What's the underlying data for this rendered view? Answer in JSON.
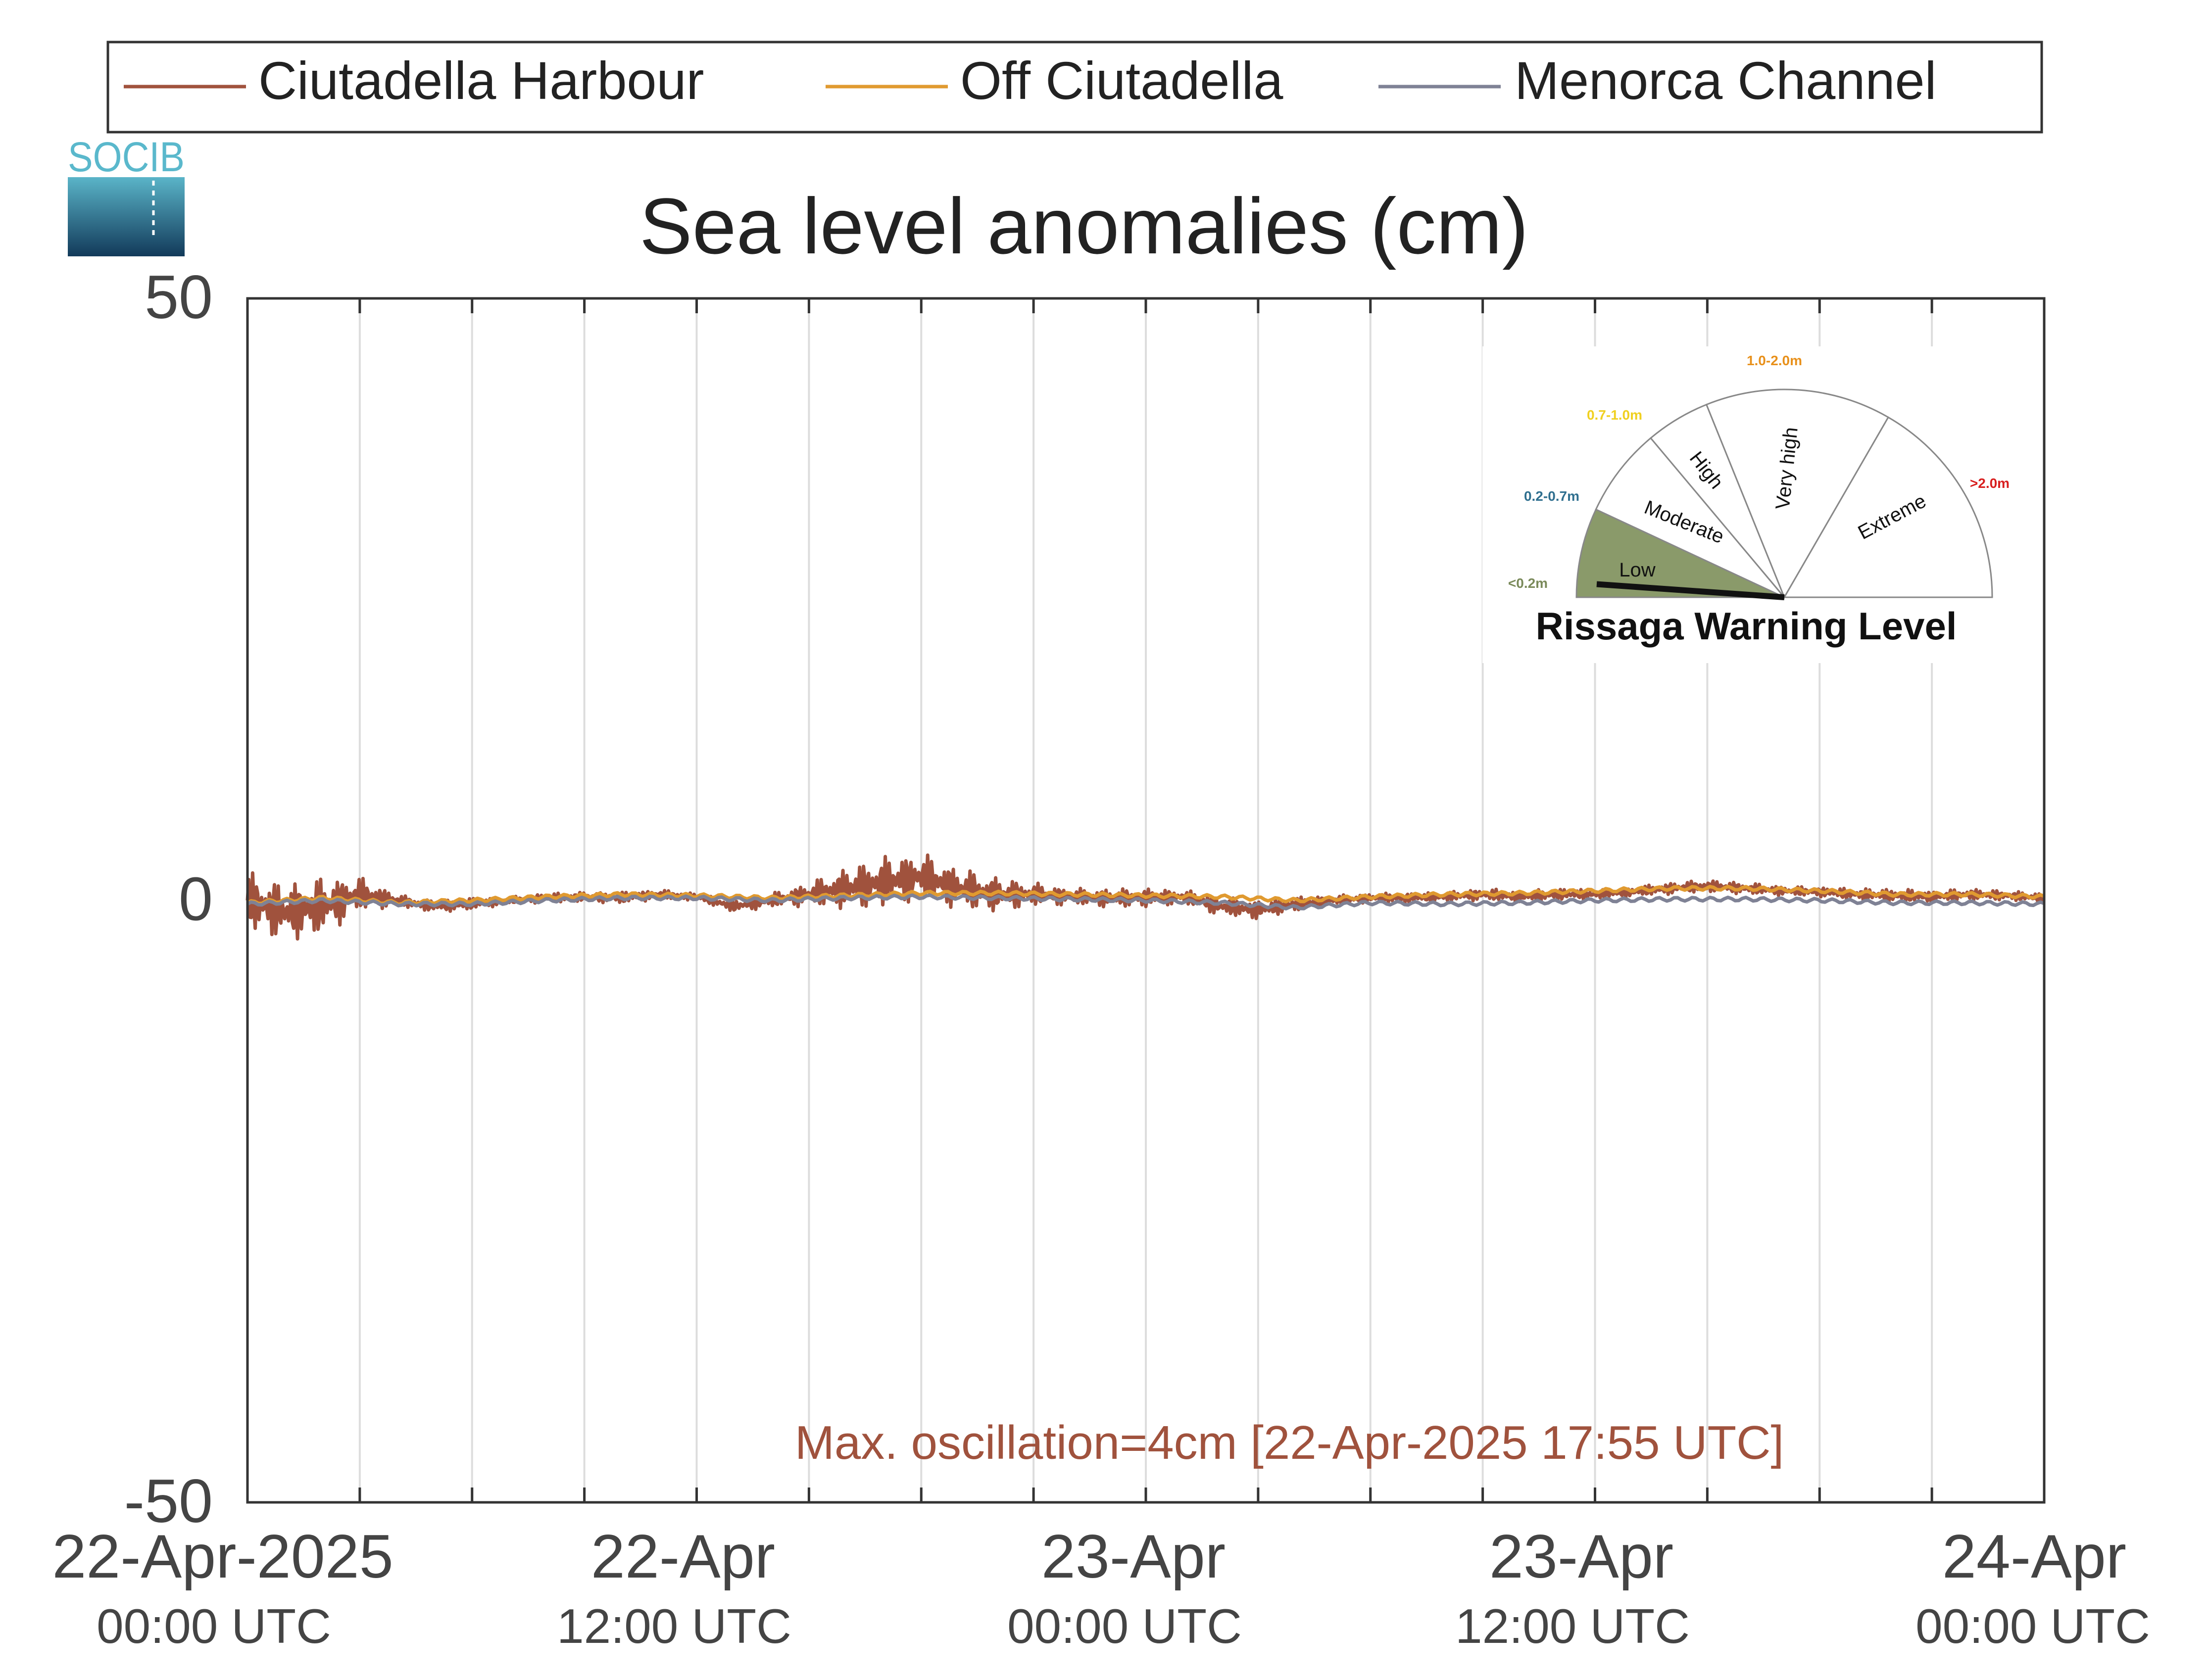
{
  "chart_data": {
    "type": "line",
    "title": "Sea level anomalies (cm)",
    "xlabel": "",
    "ylabel": "",
    "ylim": [
      -50,
      50
    ],
    "xlim": [
      "2025-04-22 00:00",
      "2025-04-24 00:00"
    ],
    "yticks": [
      "50",
      "0",
      "-50"
    ],
    "xticks": [
      {
        "line1": "22-Apr-2025",
        "line2": "00:00 UTC"
      },
      {
        "line1": "22-Apr",
        "line2": "12:00 UTC"
      },
      {
        "line1": "23-Apr",
        "line2": "00:00 UTC"
      },
      {
        "line1": "23-Apr",
        "line2": "12:00 UTC"
      },
      {
        "line1": "24-Apr",
        "line2": "00:00 UTC"
      }
    ],
    "grid": "vertical lines every 3 hours",
    "legend_position": "top",
    "series": [
      {
        "name": "Ciutadella Harbour",
        "color": "#a0523d",
        "x_hours": [
          0,
          1,
          2,
          3,
          4,
          5,
          6,
          7,
          8,
          9,
          10,
          11,
          12,
          13,
          14,
          15,
          16,
          17,
          18,
          19,
          20,
          21,
          22,
          23,
          24,
          25,
          26,
          27,
          28,
          29,
          30,
          31,
          32,
          33,
          34,
          35,
          36,
          37,
          38,
          39,
          40,
          41,
          42,
          43,
          44,
          45,
          46,
          47,
          48
        ],
        "y": [
          0,
          -1,
          -0.5,
          0.5,
          0,
          -0.5,
          -0.3,
          0,
          0.2,
          0.3,
          0.2,
          0.5,
          0.3,
          -0.5,
          0,
          0.5,
          1,
          1.5,
          2,
          1,
          0.5,
          0.5,
          0.3,
          0.2,
          0.2,
          0.3,
          -0.5,
          -0.8,
          -0.3,
          0,
          0.2,
          0.2,
          0.3,
          0.5,
          0.3,
          0.5,
          0.5,
          0.7,
          1,
          1.2,
          1,
          0.8,
          0.7,
          0.5,
          0.4,
          0.3,
          0.5,
          0.4,
          0.2
        ],
        "oscillation_amplitude": [
          2.5,
          2.5,
          2.5,
          1.5,
          0.5,
          0.5,
          0.5,
          0.3,
          0.4,
          0.4,
          0.5,
          0.4,
          0.3,
          0.5,
          0.6,
          1,
          1.8,
          2.2,
          2,
          1.8,
          1.5,
          1,
          0.7,
          0.8,
          0.8,
          0.6,
          0.8,
          0.8,
          0.6,
          0.4,
          0.4,
          0.4,
          0.4,
          0.5,
          0.5,
          0.5,
          0.4,
          0.4,
          0.5,
          0.5,
          0.5,
          0.4,
          0.4,
          0.5,
          0.6,
          0.5,
          0.5,
          0.4,
          0.4
        ]
      },
      {
        "name": "Off Ciutadella",
        "color": "#e09a30",
        "x_hours": [
          0,
          2,
          4,
          6,
          8,
          10,
          12,
          14,
          16,
          18,
          20,
          22,
          24,
          26,
          28,
          30,
          32,
          34,
          36,
          38,
          40,
          42,
          44,
          46,
          48
        ],
        "y": [
          -0.2,
          0.2,
          -0.2,
          0,
          0.3,
          0.5,
          0.4,
          0.2,
          0.4,
          0.6,
          0.6,
          0.5,
          0.4,
          0.3,
          0,
          0.3,
          0.5,
          0.6,
          0.8,
          1,
          1,
          0.8,
          0.5,
          0.5,
          0.3
        ]
      },
      {
        "name": "Menorca Channel",
        "color": "#7f8295",
        "x_hours": [
          0,
          2,
          4,
          6,
          8,
          10,
          12,
          14,
          16,
          18,
          20,
          22,
          24,
          26,
          28,
          30,
          32,
          34,
          36,
          38,
          40,
          42,
          44,
          46,
          48
        ],
        "y": [
          -0.3,
          0,
          -0.3,
          -0.3,
          0,
          0.2,
          0.2,
          0,
          0.2,
          0.3,
          0.2,
          0.1,
          0,
          -0.2,
          -0.6,
          -0.2,
          -0.3,
          -0.2,
          0,
          0.1,
          0.1,
          0,
          -0.2,
          -0.2,
          -0.3
        ]
      }
    ],
    "annotation": "Max. oscillation=4cm [22-Apr-2025 17:55 UTC]",
    "annotation_color": "#a0523d"
  },
  "logo_text": "SOCIB",
  "gauge": {
    "title": "Rissaga Warning Level",
    "needle_level": "Low",
    "segments": [
      {
        "label": "Low",
        "range": "<0.2m",
        "range_color": "#7a8a5a",
        "fill": "#8a9a6a"
      },
      {
        "label": "Moderate",
        "range": "0.2-0.7m",
        "range_color": "#2f6f8f",
        "fill": "#ffffff"
      },
      {
        "label": "High",
        "range": "0.7-1.0m",
        "range_color": "#f0d020",
        "fill": "#ffffff"
      },
      {
        "label": "Very high",
        "range": "1.0-2.0m",
        "range_color": "#e8901a",
        "fill": "#ffffff"
      },
      {
        "label": "Extreme",
        "range": ">2.0m",
        "range_color": "#d81e1e",
        "fill": "#ffffff"
      }
    ]
  }
}
